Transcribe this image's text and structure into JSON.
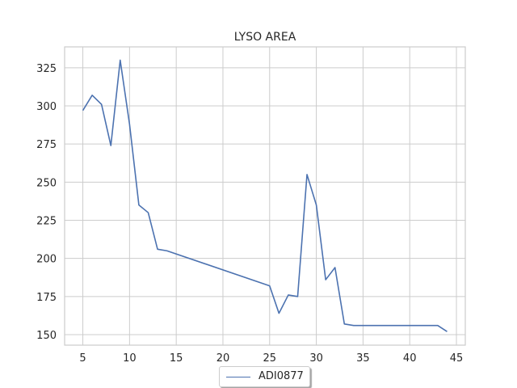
{
  "chart_data": {
    "type": "line",
    "title": "LYSO AREA",
    "xlabel": "",
    "ylabel": "",
    "xlim": [
      3.05,
      45.95
    ],
    "ylim": [
      143.1,
      338.7
    ],
    "xticks": [
      5,
      10,
      15,
      20,
      25,
      30,
      35,
      40,
      45
    ],
    "yticks": [
      150,
      175,
      200,
      225,
      250,
      275,
      300,
      325
    ],
    "grid": true,
    "legend_position": "bottom-center",
    "series": [
      {
        "name": "ADI0877",
        "color": "#4c72b0",
        "x": [
          5,
          6,
          7,
          8,
          9,
          10,
          11,
          12,
          13,
          14,
          25,
          26,
          27,
          28,
          29,
          30,
          31,
          32,
          33,
          34,
          43,
          44
        ],
        "y": [
          297,
          307,
          301,
          274,
          330,
          288,
          235,
          230,
          206,
          205,
          182,
          164,
          176,
          175,
          255,
          235,
          186,
          194,
          157,
          156,
          156,
          152
        ]
      }
    ]
  }
}
